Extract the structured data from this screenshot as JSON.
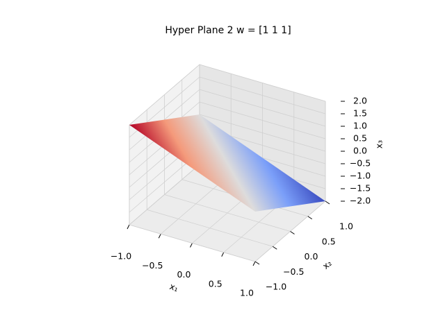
{
  "chart_data": {
    "type": "surface",
    "title": "Hyper Plane 2 w = [1 1 1]",
    "x": [
      -1,
      1
    ],
    "y": [
      -1,
      1
    ],
    "z": [
      [
        2,
        0
      ],
      [
        0,
        -2
      ]
    ],
    "colormap": [
      "#3b4cc0",
      "#7b9ff9",
      "#dddcdc",
      "#f49a7b",
      "#b40426"
    ],
    "xlabel": "x₁",
    "ylabel": "x₂",
    "zlabel": "x₃",
    "xlim": [
      -1,
      1
    ],
    "ylim": [
      -1,
      1
    ],
    "zlim": [
      -2,
      2
    ],
    "xticks": [
      {
        "value": -1,
        "label": "−1.0"
      },
      {
        "value": -0.5,
        "label": "−0.5"
      },
      {
        "value": 0,
        "label": "0.0"
      },
      {
        "value": 0.5,
        "label": "0.5"
      },
      {
        "value": 1,
        "label": "1.0"
      }
    ],
    "yticks": [
      {
        "value": -1,
        "label": "−1.0"
      },
      {
        "value": -0.5,
        "label": "−0.5"
      },
      {
        "value": 0,
        "label": "0.0"
      },
      {
        "value": 0.5,
        "label": "0.5"
      },
      {
        "value": 1,
        "label": "1.0"
      }
    ],
    "zticks": [
      {
        "value": -2,
        "label": "−2.0"
      },
      {
        "value": -1.5,
        "label": "−1.5"
      },
      {
        "value": -1,
        "label": "−1.0"
      },
      {
        "value": -0.5,
        "label": "−0.5"
      },
      {
        "value": 0,
        "label": "0.0"
      },
      {
        "value": 0.5,
        "label": "0.5"
      },
      {
        "value": 1,
        "label": "1.0"
      },
      {
        "value": 1.5,
        "label": "1.5"
      },
      {
        "value": 2,
        "label": "2.0"
      }
    ],
    "grid": true
  }
}
